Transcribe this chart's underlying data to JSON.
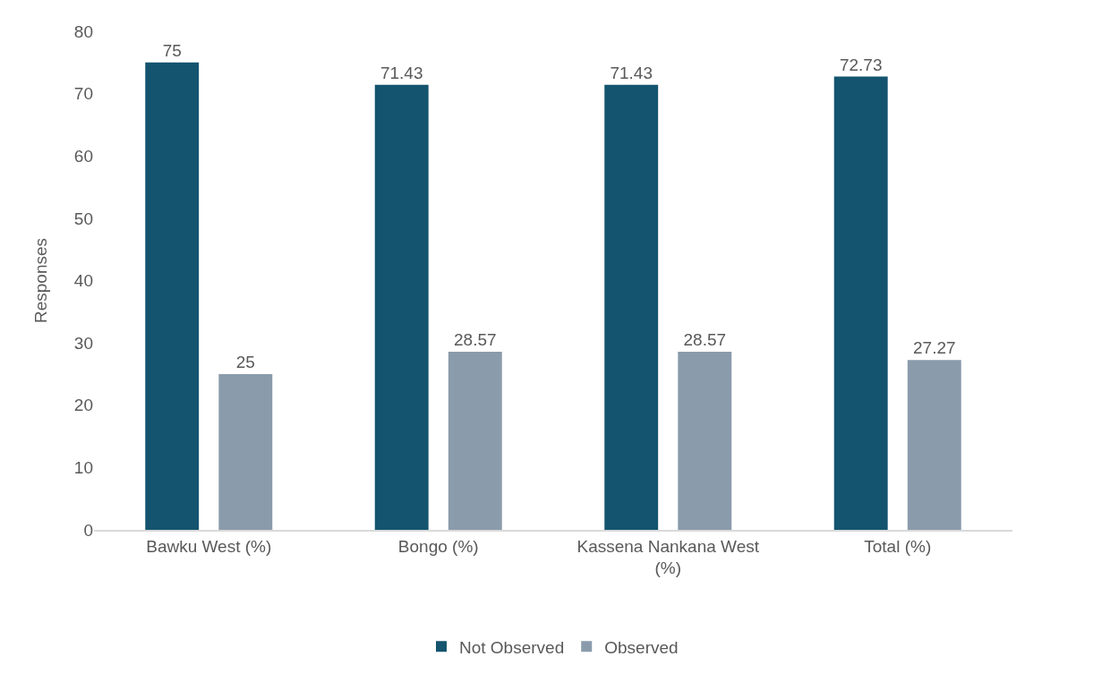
{
  "chart_data": {
    "type": "bar",
    "ylabel": "Responses",
    "categories": [
      "Bawku West (%)",
      "Bongo (%)",
      "Kassena Nankana West (%)",
      "Total (%)"
    ],
    "series": [
      {
        "name": "Not Observed",
        "color": "#14546f",
        "values": [
          75,
          71.43,
          71.43,
          72.73
        ]
      },
      {
        "name": "Observed",
        "color": "#8a9bab",
        "values": [
          25,
          28.57,
          28.57,
          27.27
        ]
      }
    ],
    "ylim": [
      0,
      80
    ],
    "yticks": [
      0,
      10,
      20,
      30,
      40,
      50,
      60,
      70,
      80
    ],
    "grid": false,
    "legend": "bottom",
    "data_labels": true
  }
}
